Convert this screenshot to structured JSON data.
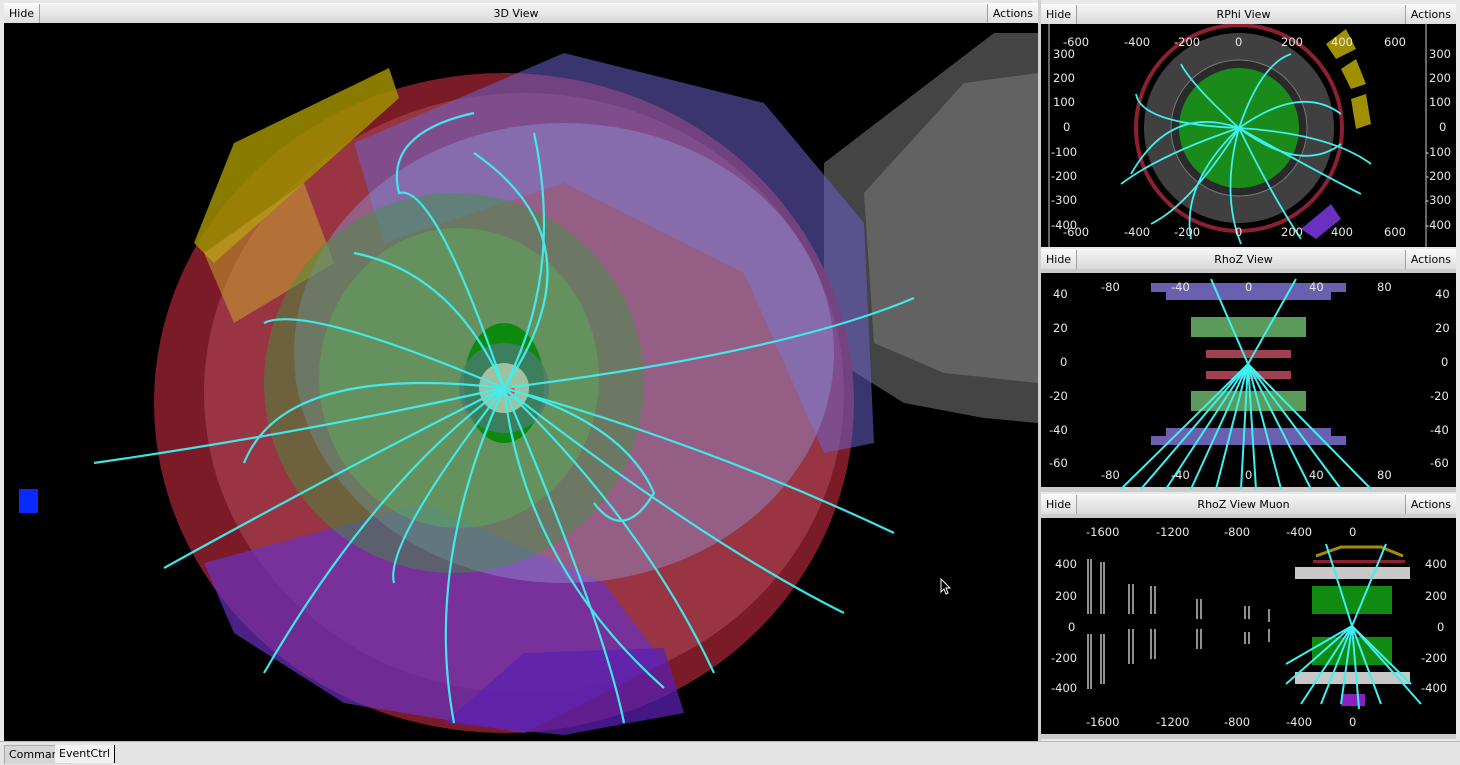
{
  "panes": {
    "view3d": {
      "hide_label": "Hide",
      "title": "3D View",
      "actions_label": "Actions"
    },
    "rphi": {
      "hide_label": "Hide",
      "title": "RPhi View",
      "actions_label": "Actions",
      "x_ticks": [
        "-600",
        "-400",
        "-200",
        "0",
        "200",
        "400",
        "600"
      ],
      "y_ticks": [
        "300",
        "200",
        "100",
        "0",
        "-100",
        "-200",
        "-300",
        "-400"
      ]
    },
    "rhoz": {
      "hide_label": "Hide",
      "title": "RhoZ View",
      "actions_label": "Actions",
      "x_ticks": [
        "-80",
        "-40",
        "0",
        "40",
        "80"
      ],
      "y_ticks": [
        "40",
        "20",
        "0",
        "-20",
        "-40",
        "-60"
      ]
    },
    "rhozmuon": {
      "hide_label": "Hide",
      "title": "RhoZ View Muon",
      "actions_label": "Actions",
      "x_ticks": [
        "-1600",
        "-1200",
        "-800",
        "-400",
        "0"
      ],
      "y_ticks": [
        "400",
        "200",
        "0",
        "-200",
        "-400"
      ]
    }
  },
  "statusbar": {
    "tabs": [
      "Command",
      "EventCtrl"
    ]
  },
  "colors": {
    "track": "#3ff0f0",
    "tracker": "#1fa01f",
    "ecal": "#b03050",
    "hcal": "#7a58c8",
    "muon": "#c8c8c8",
    "yoke": "#a09000"
  }
}
